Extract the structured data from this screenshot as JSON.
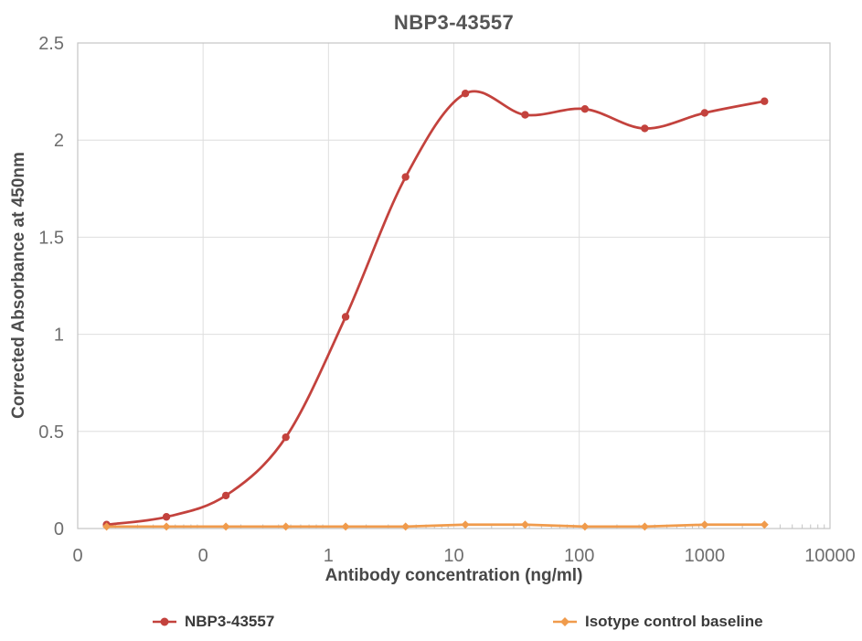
{
  "title": "NBP3-43557",
  "colors": {
    "series1": "#C3423D",
    "series2": "#F09B4C",
    "gridline": "#DEDEDE",
    "axis": "#C4C4C4",
    "title_text": "#555555",
    "tick_text": "#6E6E6E",
    "legend_text": "#3A3A3A",
    "background": "#FFFFFF"
  },
  "chart_data": {
    "type": "line",
    "title": "NBP3-43557",
    "xlabel": "Antibody concentration (ng/ml)",
    "ylabel": "Corrected Absorbance at 450nm",
    "x_scale": "log",
    "xlim": [
      0.01,
      10000
    ],
    "ylim": [
      0,
      2.5
    ],
    "grid": true,
    "legend_position": "bottom",
    "x_ticks": [
      0.01,
      0.1,
      1,
      10,
      100,
      1000,
      10000
    ],
    "x_tick_labels": [
      "0",
      "0",
      "1",
      "10",
      "100",
      "1000",
      "10000"
    ],
    "y_ticks": [
      0,
      0.5,
      1,
      1.5,
      2,
      2.5
    ],
    "y_tick_labels": [
      "0",
      "0.5",
      "1",
      "1.5",
      "2",
      "2.5"
    ],
    "x": [
      0.017,
      0.051,
      0.152,
      0.457,
      1.37,
      4.12,
      12.35,
      37,
      111,
      333,
      1000,
      3000
    ],
    "series": [
      {
        "name": "NBP3-43557",
        "color": "#C3423D",
        "marker": "circle",
        "smooth": true,
        "values": [
          0.02,
          0.06,
          0.17,
          0.47,
          1.09,
          1.81,
          2.24,
          2.13,
          2.16,
          2.06,
          2.14,
          2.2
        ]
      },
      {
        "name": "Isotype control baseline",
        "color": "#F09B4C",
        "marker": "diamond",
        "smooth": false,
        "values": [
          0.01,
          0.01,
          0.01,
          0.01,
          0.01,
          0.01,
          0.02,
          0.02,
          0.01,
          0.01,
          0.02,
          0.02
        ]
      }
    ]
  }
}
